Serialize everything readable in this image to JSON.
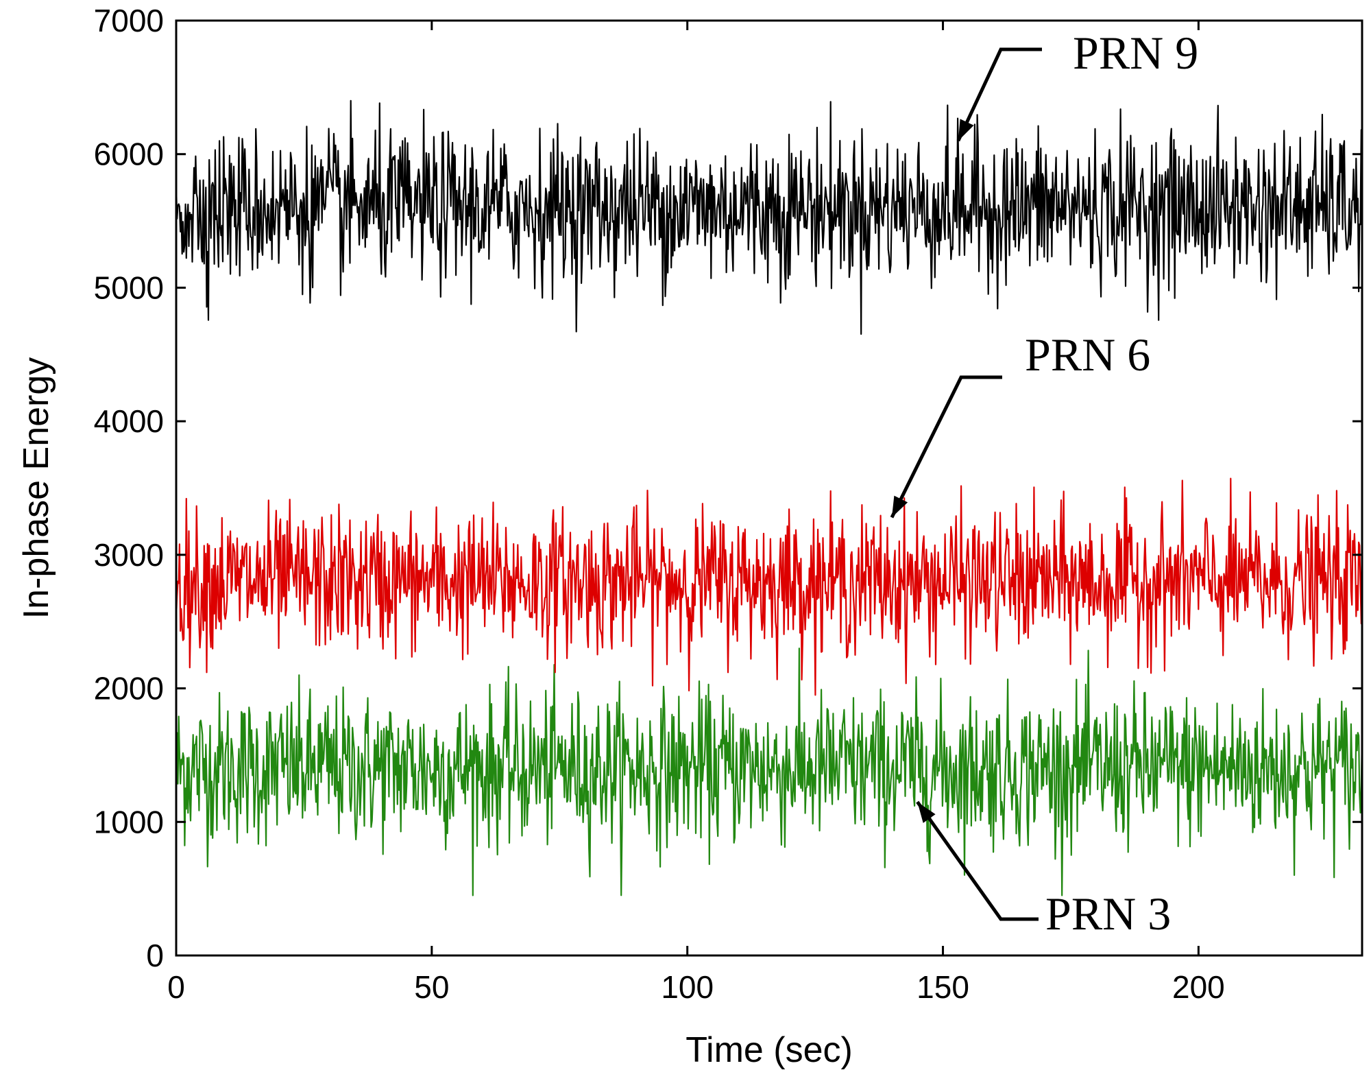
{
  "chart_data": {
    "type": "line",
    "title": "",
    "xlabel": "Time (sec)",
    "ylabel": "In-phase Energy",
    "xlim": [
      0,
      232
    ],
    "ylim": [
      0,
      7000
    ],
    "x_ticks": [
      0,
      50,
      100,
      150,
      200
    ],
    "y_ticks": [
      0,
      1000,
      2000,
      3000,
      4000,
      5000,
      6000,
      7000
    ],
    "grid": false,
    "series": [
      {
        "name": "PRN 9",
        "color": "#000000",
        "mean": 5600,
        "std": 280,
        "min": 4650,
        "max": 6550
      },
      {
        "name": "PRN 6",
        "color": "#dd0000",
        "mean": 2800,
        "std": 260,
        "min": 1950,
        "max": 3830
      },
      {
        "name": "PRN 3",
        "color": "#228811",
        "mean": 1400,
        "std": 280,
        "min": 450,
        "max": 2300
      }
    ],
    "annotations": [
      {
        "text": "PRN 9",
        "target_series": "PRN 9",
        "arrow_to": {
          "x": 153,
          "y": 6100
        }
      },
      {
        "text": "PRN 6",
        "target_series": "PRN 6",
        "arrow_to": {
          "x": 140,
          "y": 3280
        }
      },
      {
        "text": "PRN 3",
        "target_series": "PRN 3",
        "arrow_to": {
          "x": 145,
          "y": 1150
        }
      }
    ]
  }
}
